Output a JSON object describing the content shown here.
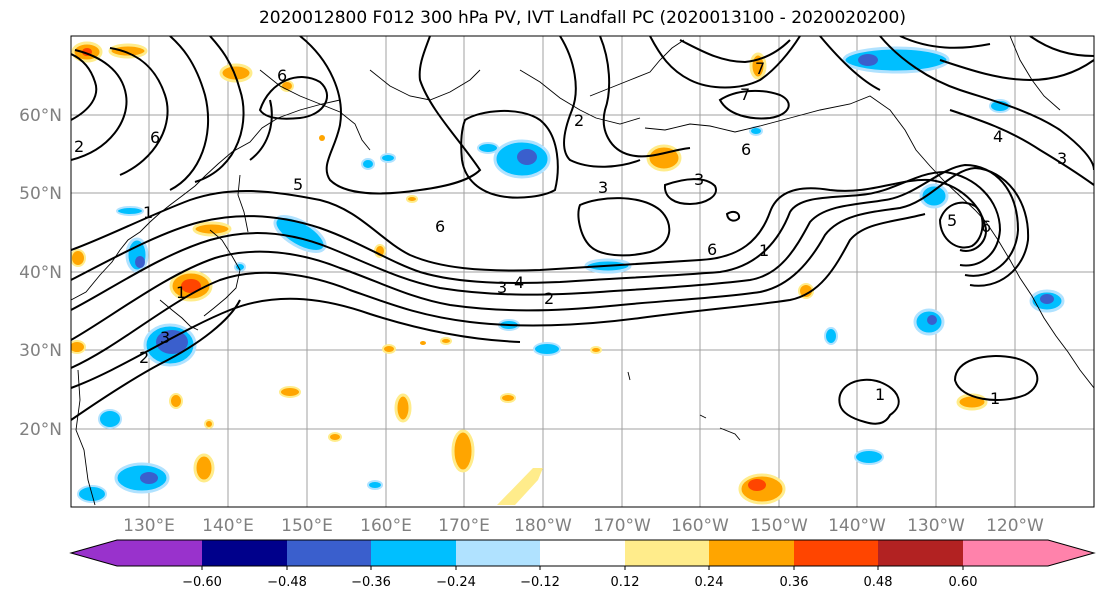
{
  "title": "2020012800 F012 300 hPa PV, IVT Landfall PC (2020013100 - 2020020200)",
  "map": {
    "lat_labels": [
      "60°N",
      "50°N",
      "40°N",
      "30°N",
      "20°N"
    ],
    "lon_labels": [
      "130°E",
      "140°E",
      "150°E",
      "160°E",
      "170°E",
      "180°W",
      "170°W",
      "160°W",
      "150°W",
      "140°W",
      "130°W",
      "120°W"
    ],
    "contour_labels": [
      "1",
      "5",
      "6",
      "6",
      "2",
      "3",
      "3",
      "6",
      "6",
      "7",
      "7",
      "4",
      "3",
      "1",
      "5",
      "6",
      "3",
      "4",
      "2",
      "6",
      "1",
      "2",
      "3",
      "1",
      "1",
      "2"
    ]
  },
  "colorbar": {
    "tick_labels": [
      "−0.60",
      "−0.48",
      "−0.36",
      "−0.24",
      "−0.12",
      "0.12",
      "0.24",
      "0.36",
      "0.48",
      "0.60"
    ],
    "colors": [
      "#9932cc",
      "#00008b",
      "#3a5fcd",
      "#00bfff",
      "#b0e2ff",
      "#ffffff",
      "#ffec8b",
      "#ffa500",
      "#ff4500",
      "#b22222",
      "#ff82ab"
    ]
  }
}
